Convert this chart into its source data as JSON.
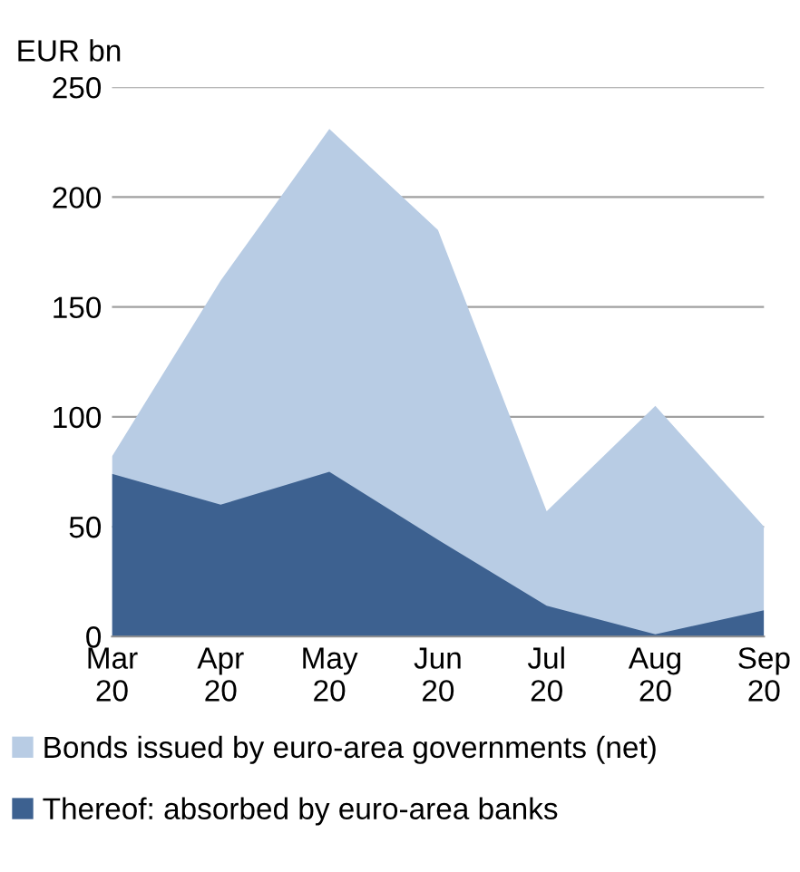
{
  "chart_data": {
    "type": "area",
    "ylabel": "EUR bn",
    "categories": [
      "Mar\n20",
      "Apr\n20",
      "May\n20",
      "Jun\n20",
      "Jul\n20",
      "Aug\n20",
      "Sep\n20"
    ],
    "series": [
      {
        "name": "Bonds issued by euro-area governments (net)",
        "color": "#b8cce4",
        "values": [
          82,
          162,
          231,
          185,
          57,
          105,
          50
        ]
      },
      {
        "name": "Thereof: absorbed by euro-area banks",
        "color": "#3d6190",
        "values": [
          74,
          60,
          75,
          44,
          14,
          1,
          12
        ]
      }
    ],
    "ylim": [
      0,
      250
    ],
    "yticks": [
      0,
      50,
      100,
      150,
      200,
      250
    ],
    "grid": "y",
    "legend": "bottom"
  }
}
